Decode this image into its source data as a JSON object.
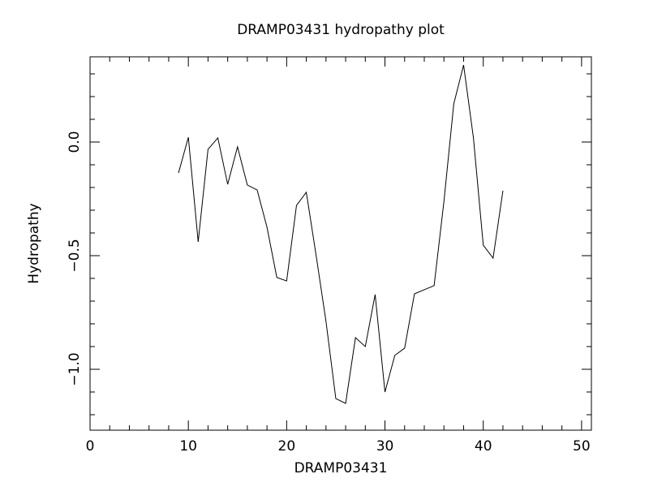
{
  "chart_data": {
    "type": "line",
    "title": "DRAMP03431 hydropathy plot",
    "x_label": "DRAMP03431",
    "y_label": "Hydropathy",
    "x": [
      9,
      10,
      11,
      12,
      13,
      14,
      15,
      16,
      17,
      18,
      19,
      20,
      21,
      22,
      23,
      24,
      25,
      26,
      27,
      28,
      29,
      30,
      31,
      32,
      33,
      34,
      35,
      36,
      37,
      38,
      39,
      40,
      41,
      42
    ],
    "values": [
      -0.136,
      0.021,
      -0.439,
      -0.032,
      0.018,
      -0.186,
      -0.021,
      -0.189,
      -0.211,
      -0.375,
      -0.596,
      -0.611,
      -0.279,
      -0.221,
      -0.5,
      -0.789,
      -1.129,
      -1.15,
      -0.861,
      -0.9,
      -0.671,
      -1.1,
      -0.939,
      -0.907,
      -0.668,
      -0.65,
      -0.632,
      -0.261,
      0.168,
      0.339,
      0.018,
      -0.454,
      -0.511,
      -0.214
    ],
    "color": "#000000",
    "xlim": [
      0,
      51
    ],
    "ylim": [
      -1.268,
      0.375
    ],
    "xticks": [
      0,
      10,
      20,
      30,
      40,
      50
    ],
    "yticks": [
      {
        "value": 0,
        "label": "0.0"
      },
      {
        "value": -0.5,
        "label": "−0.5"
      },
      {
        "value": -1,
        "label": "−1.0"
      }
    ],
    "x_minor_ticks": [
      2,
      4,
      6,
      8,
      12,
      14,
      16,
      18,
      22,
      24,
      26,
      28,
      32,
      34,
      36,
      38,
      42,
      44,
      46,
      48
    ],
    "y_minor_ticks": [
      0.3,
      0.2,
      0.1,
      -0.1,
      -0.2,
      -0.3,
      -0.4,
      -0.6,
      -0.7,
      -0.8,
      -0.9,
      -1.1,
      -1.2
    ],
    "grid": false
  }
}
